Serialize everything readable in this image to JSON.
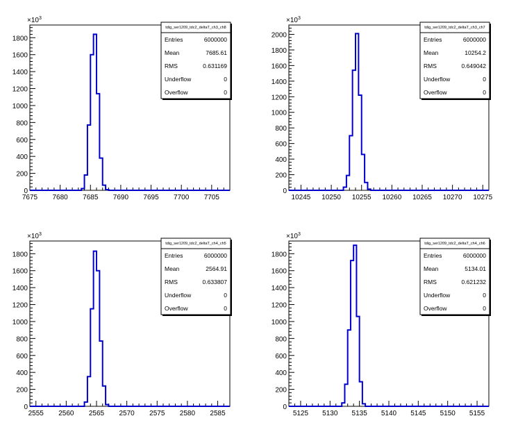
{
  "chart_data": [
    {
      "type": "histogram",
      "title": "tdig_ser1209_tdc2_deltaT_ch3_ch8",
      "y_exponent": "×10",
      "y_exponent_power": "3",
      "xlim": [
        7675,
        7708
      ],
      "ylim": [
        0,
        1950
      ],
      "xticks": [
        "7675",
        "7680",
        "7685",
        "7690",
        "7695",
        "7700",
        "7705"
      ],
      "yticks": [
        "0",
        "200",
        "400",
        "600",
        "800",
        "1000",
        "1200",
        "1400",
        "1600",
        "1800"
      ],
      "bin_width": 0.5,
      "bins": [
        {
          "x": 7683.5,
          "y": 20
        },
        {
          "x": 7684.0,
          "y": 180
        },
        {
          "x": 7684.5,
          "y": 770
        },
        {
          "x": 7685.0,
          "y": 1600
        },
        {
          "x": 7685.5,
          "y": 1840
        },
        {
          "x": 7686.0,
          "y": 1140
        },
        {
          "x": 7686.5,
          "y": 380
        },
        {
          "x": 7687.0,
          "y": 60
        },
        {
          "x": 7687.5,
          "y": 8
        }
      ],
      "stats": [
        {
          "label": "Entries",
          "value": "6000000"
        },
        {
          "label": "Mean",
          "value": "7685.61"
        },
        {
          "label": "RMS",
          "value": "0.631169"
        },
        {
          "label": "Underflow",
          "value": "0"
        },
        {
          "label": "Overflow",
          "value": "0"
        }
      ]
    },
    {
      "type": "histogram",
      "title": "tdig_ser1209_tdc2_deltaT_ch3_ch7",
      "y_exponent": "×10",
      "y_exponent_power": "3",
      "xlim": [
        10243,
        10276
      ],
      "ylim": [
        0,
        2120
      ],
      "xticks": [
        "10245",
        "10250",
        "10255",
        "10260",
        "10265",
        "10270",
        "10275"
      ],
      "yticks": [
        "0",
        "200",
        "400",
        "600",
        "800",
        "1000",
        "1200",
        "1400",
        "1600",
        "1800",
        "2000"
      ],
      "bin_width": 0.5,
      "bins": [
        {
          "x": 10252.0,
          "y": 40
        },
        {
          "x": 10252.5,
          "y": 190
        },
        {
          "x": 10253.0,
          "y": 700
        },
        {
          "x": 10253.5,
          "y": 1540
        },
        {
          "x": 10254.0,
          "y": 2010
        },
        {
          "x": 10254.5,
          "y": 1220
        },
        {
          "x": 10255.0,
          "y": 460
        },
        {
          "x": 10255.5,
          "y": 100
        },
        {
          "x": 10256.0,
          "y": 15
        }
      ],
      "stats": [
        {
          "label": "Entries",
          "value": "6000000"
        },
        {
          "label": "Mean",
          "value": "10254.2"
        },
        {
          "label": "RMS",
          "value": "0.649042"
        },
        {
          "label": "Underflow",
          "value": "0"
        },
        {
          "label": "Overflow",
          "value": "0"
        }
      ]
    },
    {
      "type": "histogram",
      "title": "tdig_ser1209_tdc2_deltaT_ch4_ch5",
      "y_exponent": "×10",
      "y_exponent_power": "3",
      "xlim": [
        2554,
        2587
      ],
      "ylim": [
        0,
        1950
      ],
      "xticks": [
        "2555",
        "2560",
        "2565",
        "2570",
        "2575",
        "2580",
        "2585"
      ],
      "yticks": [
        "0",
        "200",
        "400",
        "600",
        "800",
        "1000",
        "1200",
        "1400",
        "1600",
        "1800"
      ],
      "bin_width": 0.5,
      "bins": [
        {
          "x": 2563.0,
          "y": 50
        },
        {
          "x": 2563.5,
          "y": 350
        },
        {
          "x": 2564.0,
          "y": 1150
        },
        {
          "x": 2564.5,
          "y": 1830
        },
        {
          "x": 2565.0,
          "y": 1600
        },
        {
          "x": 2565.5,
          "y": 770
        },
        {
          "x": 2566.0,
          "y": 240
        },
        {
          "x": 2566.5,
          "y": 20
        }
      ],
      "stats": [
        {
          "label": "Entries",
          "value": "6000000"
        },
        {
          "label": "Mean",
          "value": "2564.91"
        },
        {
          "label": "RMS",
          "value": "0.633807"
        },
        {
          "label": "Underflow",
          "value": "0"
        },
        {
          "label": "Overflow",
          "value": "0"
        }
      ]
    },
    {
      "type": "histogram",
      "title": "tdig_ser1209_tdc2_deltaT_ch4_ch6",
      "y_exponent": "×10",
      "y_exponent_power": "3",
      "xlim": [
        5123,
        5157
      ],
      "ylim": [
        0,
        1950
      ],
      "xticks": [
        "5125",
        "5130",
        "5135",
        "5140",
        "5145",
        "5150",
        "5155"
      ],
      "yticks": [
        "0",
        "200",
        "400",
        "600",
        "800",
        "1000",
        "1200",
        "1400",
        "1600",
        "1800"
      ],
      "bin_width": 0.5,
      "bins": [
        {
          "x": 5132.0,
          "y": 40
        },
        {
          "x": 5132.5,
          "y": 260
        },
        {
          "x": 5133.0,
          "y": 900
        },
        {
          "x": 5133.5,
          "y": 1720
        },
        {
          "x": 5134.0,
          "y": 1900
        },
        {
          "x": 5134.5,
          "y": 1060
        },
        {
          "x": 5135.0,
          "y": 290
        },
        {
          "x": 5135.5,
          "y": 30
        }
      ],
      "stats": [
        {
          "label": "Entries",
          "value": "6000000"
        },
        {
          "label": "Mean",
          "value": "5134.01"
        },
        {
          "label": "RMS",
          "value": "0.621232"
        },
        {
          "label": "Underflow",
          "value": "0"
        },
        {
          "label": "Overflow",
          "value": "0"
        }
      ]
    }
  ],
  "colors": {
    "histogram_line": "#0000cc",
    "frame": "#000000",
    "background": "#ffffff"
  }
}
